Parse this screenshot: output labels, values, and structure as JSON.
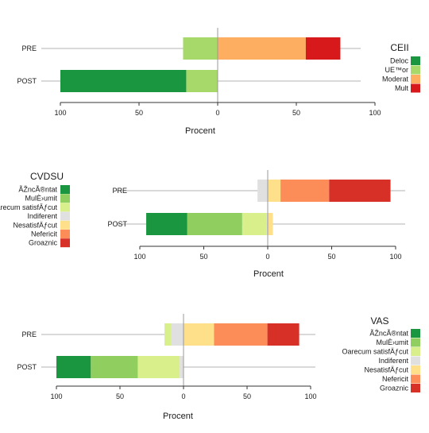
{
  "chart_data": [
    {
      "type": "bar",
      "orientation": "horizontal-diverging",
      "categories": [
        "PRE",
        "POST"
      ],
      "xlabel": "Procent",
      "x_ticks": [
        "100",
        "50",
        "0",
        "50",
        "100"
      ],
      "xlim": [
        -110,
        110
      ],
      "legend": {
        "title": "CEII",
        "placement": "right",
        "items": [
          {
            "name": "Deloc",
            "color": "#1a9641"
          },
          {
            "name": "UE™or",
            "color": "#a6d96a"
          },
          {
            "name": "Moderat",
            "color": "#fdae61"
          },
          {
            "name": "Mult",
            "color": "#d7191c"
          }
        ]
      },
      "series": [
        {
          "name": "Deloc",
          "color": "#1a9641",
          "values": [
            0,
            -80
          ]
        },
        {
          "name": "UE™or",
          "color": "#a6d96a",
          "values": [
            -22,
            -20
          ]
        },
        {
          "name": "Moderat",
          "color": "#fdae61",
          "values": [
            56,
            0
          ]
        },
        {
          "name": "Mult",
          "color": "#d7191c",
          "values": [
            22,
            0
          ]
        }
      ]
    },
    {
      "type": "bar",
      "orientation": "horizontal-diverging",
      "categories": [
        "PRE",
        "POST"
      ],
      "xlabel": "Procent",
      "x_ticks": [
        "100",
        "50",
        "0",
        "50",
        "100"
      ],
      "xlim": [
        -110,
        110
      ],
      "legend": {
        "title": "CVDSU",
        "placement": "left",
        "items": [
          {
            "name": "ÃŽncÃ®ntat",
            "color": "#1a9641"
          },
          {
            "name": "MulÈ›umit",
            "color": "#8fce5f"
          },
          {
            "name": "Oarecum satisfÄƒcut",
            "color": "#d9ef8b"
          },
          {
            "name": "Indiferent",
            "color": "#e0e0e0"
          },
          {
            "name": "NesatisfÄƒcut",
            "color": "#fee08b"
          },
          {
            "name": "Nefericit",
            "color": "#fc8d59"
          },
          {
            "name": "Groaznic",
            "color": "#d73027"
          }
        ]
      },
      "series": [
        {
          "name": "ÃŽncÃ®ntat",
          "color": "#1a9641",
          "values": [
            0,
            -32
          ]
        },
        {
          "name": "MulÈ›umit",
          "color": "#8fce5f",
          "values": [
            0,
            -43
          ]
        },
        {
          "name": "Oarecum satisfÄƒcut",
          "color": "#d9ef8b",
          "values": [
            0,
            -19
          ]
        },
        {
          "name": "Indiferent",
          "color": "#e0e0e0",
          "values": [
            -8,
            -1
          ]
        },
        {
          "name": "NesatisfÄƒcut",
          "color": "#fee08b",
          "values": [
            10,
            4
          ]
        },
        {
          "name": "Nefericit",
          "color": "#fc8d59",
          "values": [
            38,
            0
          ]
        },
        {
          "name": "Groaznic",
          "color": "#d73027",
          "values": [
            48,
            0
          ]
        }
      ]
    },
    {
      "type": "bar",
      "orientation": "horizontal-diverging",
      "categories": [
        "PRE",
        "POST"
      ],
      "xlabel": "Procent",
      "x_ticks": [
        "100",
        "50",
        "0",
        "50",
        "100"
      ],
      "xlim": [
        -110,
        110
      ],
      "legend": {
        "title": "VAS",
        "placement": "right",
        "items": [
          {
            "name": "ÃŽncÃ®ntat",
            "color": "#1a9641"
          },
          {
            "name": "MulÈ›umit",
            "color": "#8fce5f"
          },
          {
            "name": "Oarecum satisfÄƒcut",
            "color": "#d9ef8b"
          },
          {
            "name": "Indiferent",
            "color": "#e0e0e0"
          },
          {
            "name": "NesatisfÄƒcut",
            "color": "#fee08b"
          },
          {
            "name": "Nefericit",
            "color": "#fc8d59"
          },
          {
            "name": "Groaznic",
            "color": "#d73027"
          }
        ]
      },
      "series": [
        {
          "name": "ÃŽncÃ®ntat",
          "color": "#1a9641",
          "values": [
            0,
            -27
          ]
        },
        {
          "name": "MulÈ›umit",
          "color": "#8fce5f",
          "values": [
            0,
            -37
          ]
        },
        {
          "name": "Oarecum satisfÄƒcut",
          "color": "#d9ef8b",
          "values": [
            -5,
            -33
          ]
        },
        {
          "name": "Indiferent",
          "color": "#e0e0e0",
          "values": [
            -10,
            -3
          ]
        },
        {
          "name": "NesatisfÄƒcut",
          "color": "#fee08b",
          "values": [
            24,
            0
          ]
        },
        {
          "name": "Nefericit",
          "color": "#fc8d59",
          "values": [
            42,
            0
          ]
        },
        {
          "name": "Groaznic",
          "color": "#d73027",
          "values": [
            25,
            0
          ]
        }
      ]
    }
  ]
}
